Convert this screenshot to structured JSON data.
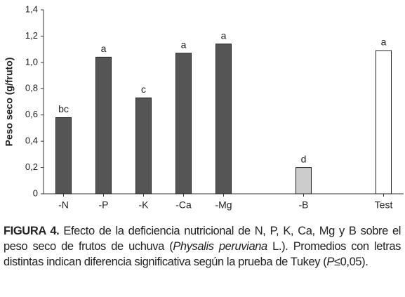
{
  "chart_data": {
    "type": "bar",
    "y_label": "Peso seco (g/fruto)",
    "categories": [
      "-N",
      "-P",
      "-K",
      "-Ca",
      "-Mg",
      null,
      "-B",
      null,
      "Test"
    ],
    "values": [
      0.58,
      1.04,
      0.73,
      1.07,
      1.14,
      null,
      0.2,
      null,
      1.09
    ],
    "letters": [
      "bc",
      "a",
      "c",
      "a",
      "a",
      null,
      "d",
      null,
      "a"
    ],
    "colors": [
      "#555555",
      "#555555",
      "#555555",
      "#555555",
      "#555555",
      null,
      "#cccccc",
      null,
      "#ffffff"
    ],
    "ylim": [
      0,
      1.4
    ],
    "yticks": [
      0,
      {
        "value": 0.2,
        "label": "0,2"
      },
      {
        "value": 0.4,
        "label": "0,4"
      },
      {
        "value": 0.6,
        "label": "0,6"
      },
      {
        "value": 0.8,
        "label": "0,8"
      },
      {
        "value": 1.0,
        "label": "1,0"
      },
      {
        "value": 1.2,
        "label": "1,2"
      },
      {
        "value": 1.4,
        "label": "1,4"
      }
    ]
  },
  "caption": {
    "label": "FIGURA 4.",
    "text1": "Efecto de la deficiencia nutricional de N, P, K, Ca, Mg y B sobre el peso seco de frutos de uchuva (",
    "species": "Physalis peruviana",
    "text2": "L.). Promedios con letras distintas indican diferencia significativa según la prueba de Tukey (",
    "p": "P",
    "text3": "≤0,05)."
  }
}
